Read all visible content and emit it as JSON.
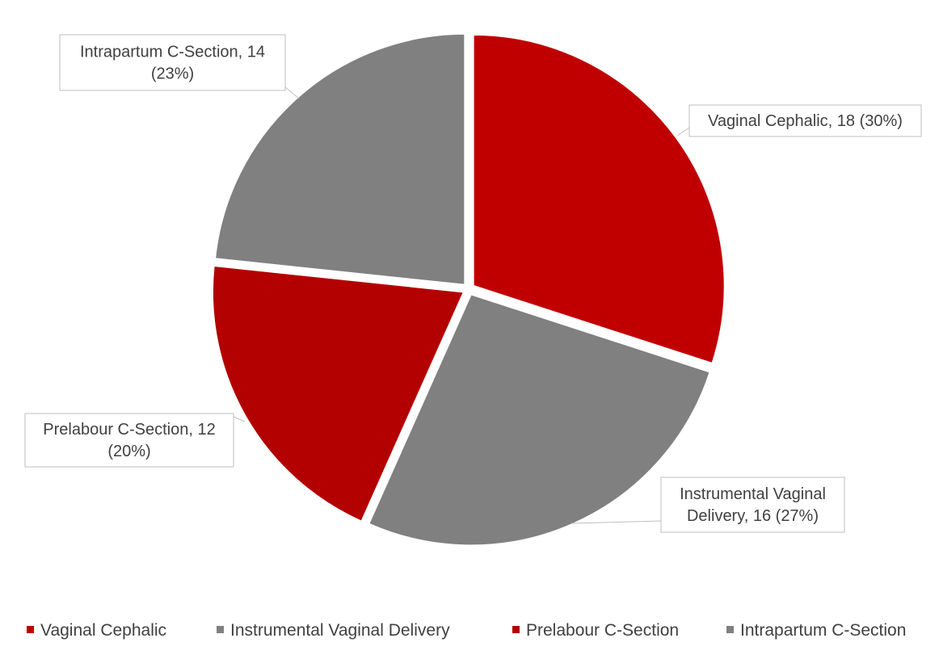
{
  "chart_data": {
    "type": "pie",
    "title": "",
    "slices": [
      {
        "label": "Vaginal Cephalic",
        "value": 18,
        "percent": "30%",
        "data_label_lines": [
          "Vaginal Cephalic, 18 (30%)"
        ],
        "color": "#C00000"
      },
      {
        "label": "Instrumental  Vaginal Delivery",
        "value": 16,
        "percent": "27%",
        "data_label_lines": [
          "Instrumental  Vaginal",
          "Delivery, 16 (27%)"
        ],
        "color": "#808080"
      },
      {
        "label": "Prelabour C-Section",
        "value": 12,
        "percent": "20%",
        "data_label_lines": [
          "Prelabour C-Section, 12",
          "(20%)"
        ],
        "color": "#B30000"
      },
      {
        "label": "Intrapartum C-Section",
        "value": 14,
        "percent": "23%",
        "data_label_lines": [
          "Intrapartum C-Section, 14",
          "(23%)"
        ],
        "color": "#808080"
      }
    ],
    "legend": {
      "position": "bottom",
      "entries": [
        "Vaginal Cephalic",
        "Instrumental  Vaginal Delivery",
        "Prelabour C-Section",
        "Intrapartum C-Section"
      ]
    },
    "slice_separator_color": "#FFFFFF",
    "label_border_color": "#BFBFBF",
    "text_color": "#404040"
  }
}
